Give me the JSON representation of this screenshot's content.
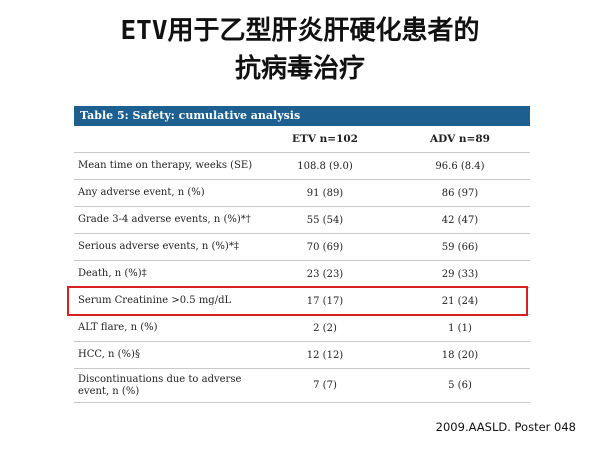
{
  "title": {
    "line1": "ETV用于乙型肝炎肝硬化患者的",
    "line2": "抗病毒治疗"
  },
  "table": {
    "caption": "Table 5: Safety: cumulative analysis",
    "columns": [
      "",
      "ETV n=102",
      "ADV n=89"
    ],
    "rows": [
      {
        "label": "Mean time on therapy, weeks (SE)",
        "etv": "108.8 (9.0)",
        "adv": "96.6 (8.4)"
      },
      {
        "label": "Any adverse event, n (%)",
        "etv": "91 (89)",
        "adv": "86 (97)"
      },
      {
        "label": "Grade 3-4 adverse events, n (%)*†",
        "etv": "55 (54)",
        "adv": "42 (47)"
      },
      {
        "label": "Serious adverse events, n (%)*‡",
        "etv": "70 (69)",
        "adv": "59 (66)"
      },
      {
        "label": "Death, n (%)‡",
        "etv": "23 (23)",
        "adv": "29 (33)"
      },
      {
        "label": "Serum Creatinine >0.5 mg/dL",
        "etv": "17 (17)",
        "adv": "21 (24)"
      },
      {
        "label": "ALT flare, n (%)",
        "etv": "2 (2)",
        "adv": "1 (1)"
      },
      {
        "label": "HCC, n (%)§",
        "etv": "12 (12)",
        "adv": "18 (20)"
      },
      {
        "label": "Discontinuations due to adverse event, n (%)",
        "etv": "7 (7)",
        "adv": "5 (6)"
      }
    ]
  },
  "citation": "2009.AASLD. Poster 048",
  "colors": {
    "caption_bg": "#1d5f8f",
    "highlight": "#d6211f"
  }
}
